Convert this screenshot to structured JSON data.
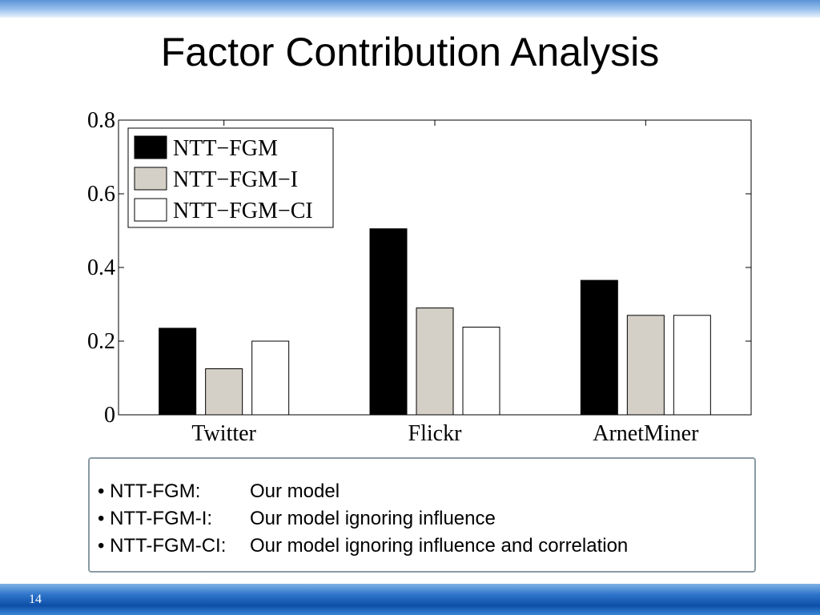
{
  "slide": {
    "title": "Factor Contribution Analysis",
    "number": "14"
  },
  "chart_data": {
    "type": "bar",
    "categories": [
      "Twitter",
      "Flickr",
      "ArnetMiner"
    ],
    "series": [
      {
        "name": "NTT−FGM",
        "values": [
          0.235,
          0.505,
          0.365
        ],
        "color": "#000000"
      },
      {
        "name": "NTT−FGM−I",
        "values": [
          0.125,
          0.29,
          0.27
        ],
        "color": "#d4d0c8"
      },
      {
        "name": "NTT−FGM−CI",
        "values": [
          0.2,
          0.238,
          0.27
        ],
        "color": "#ffffff"
      }
    ],
    "ylim": [
      0,
      0.8
    ],
    "yticks": [
      0,
      0.2,
      0.4,
      0.6,
      0.8
    ],
    "ytick_labels": [
      "0",
      "0.2",
      "0.4",
      "0.6",
      "0.8"
    ],
    "legend_position": "top-left",
    "grid": false
  },
  "notes": [
    {
      "term": "• NTT-FGM:",
      "desc": "Our model"
    },
    {
      "term": "• NTT-FGM-I:",
      "desc": "Our model ignoring influence"
    },
    {
      "term": "• NTT-FGM-CI:",
      "desc": "Our model ignoring influence and correlation"
    }
  ]
}
